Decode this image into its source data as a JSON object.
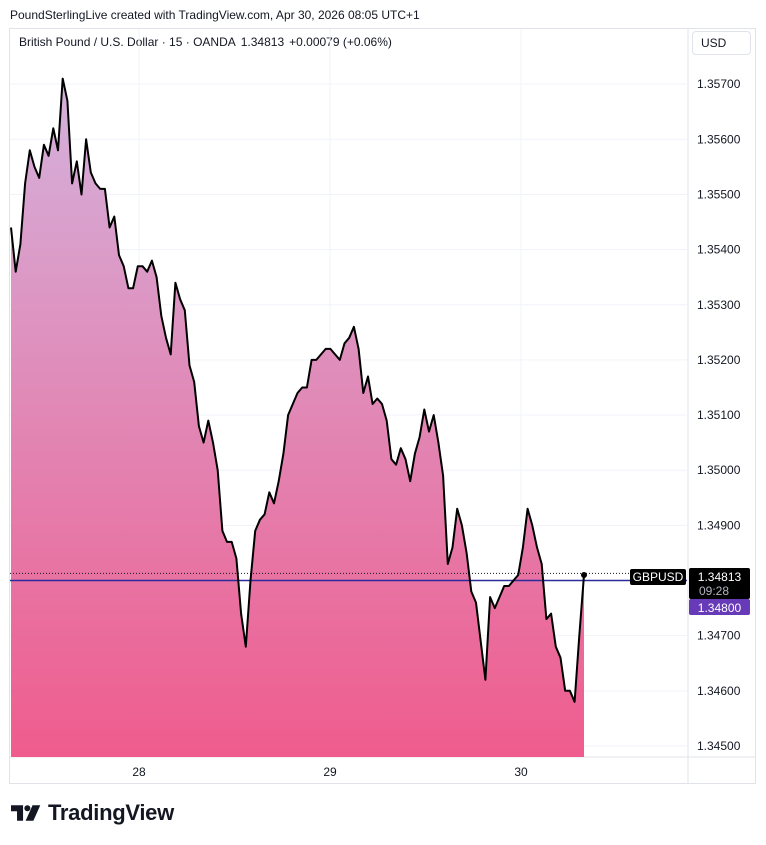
{
  "header": {
    "text": "PoundSterlingLive created with TradingView.com, Apr 30, 2026 08:05 UTC+1"
  },
  "legend": {
    "title": "British Pound / U.S. Dollar · 15 · OANDA",
    "last": "1.34813",
    "change": "+0.00079 (+0.06%)"
  },
  "currency_button": "USD",
  "labels": {
    "symbol": "GBPUSD",
    "price": "1.34813",
    "countdown": "09:28",
    "line_price": "1.34800"
  },
  "brand": {
    "text": "TradingView"
  },
  "colors": {
    "line": "#000000",
    "fill_top": "#d4b2dd",
    "fill_bottom": "#ef5c8d",
    "hline": "#2b2b9c",
    "label_bg": "#000000",
    "line_label_bg": "#673ab7"
  },
  "chart_data": {
    "type": "area",
    "title": "",
    "xlabel": "",
    "ylabel": "",
    "x_ticks": [
      "28",
      "29",
      "30"
    ],
    "ylim": [
      1.3448,
      1.358
    ],
    "y_ticks": [
      "1.35700",
      "1.35600",
      "1.35500",
      "1.35400",
      "1.35300",
      "1.35200",
      "1.35100",
      "1.35000",
      "1.34900",
      "1.34700",
      "1.34600",
      "1.34500"
    ],
    "grid": true,
    "horizontal_line": 1.348,
    "last_value": 1.34813,
    "series": [
      {
        "values": [
          1.3544,
          1.3536,
          1.3541,
          1.3552,
          1.3558,
          1.3555,
          1.3553,
          1.3559,
          1.3557,
          1.3562,
          1.3558,
          1.3571,
          1.3567,
          1.3552,
          1.3556,
          1.355,
          1.356,
          1.3554,
          1.3552,
          1.3551,
          1.3551,
          1.3544,
          1.3546,
          1.3539,
          1.3537,
          1.3533,
          1.3533,
          1.3537,
          1.3537,
          1.3536,
          1.3538,
          1.3535,
          1.3528,
          1.3524,
          1.3521,
          1.3534,
          1.3531,
          1.3529,
          1.3519,
          1.3516,
          1.3508,
          1.3505,
          1.3509,
          1.3505,
          1.35,
          1.3489,
          1.3487,
          1.3487,
          1.3484,
          1.3474,
          1.3468,
          1.348,
          1.3489,
          1.3491,
          1.3492,
          1.3496,
          1.3494,
          1.3498,
          1.3503,
          1.351,
          1.3512,
          1.3514,
          1.3515,
          1.3515,
          1.352,
          1.352,
          1.3521,
          1.3522,
          1.3522,
          1.3521,
          1.352,
          1.3523,
          1.3524,
          1.3526,
          1.3522,
          1.3514,
          1.3517,
          1.3512,
          1.3513,
          1.3512,
          1.3509,
          1.3502,
          1.3501,
          1.3504,
          1.3502,
          1.3498,
          1.3503,
          1.3506,
          1.3511,
          1.3507,
          1.351,
          1.3505,
          1.3499,
          1.3483,
          1.3486,
          1.3493,
          1.349,
          1.3485,
          1.3478,
          1.3476,
          1.3469,
          1.3462,
          1.3477,
          1.3475,
          1.3477,
          1.3479,
          1.3479,
          1.348,
          1.3481,
          1.3486,
          1.3493,
          1.349,
          1.3486,
          1.3483,
          1.3473,
          1.3474,
          1.3468,
          1.3466,
          1.346,
          1.346,
          1.3458,
          1.347,
          1.3481
        ]
      }
    ]
  }
}
